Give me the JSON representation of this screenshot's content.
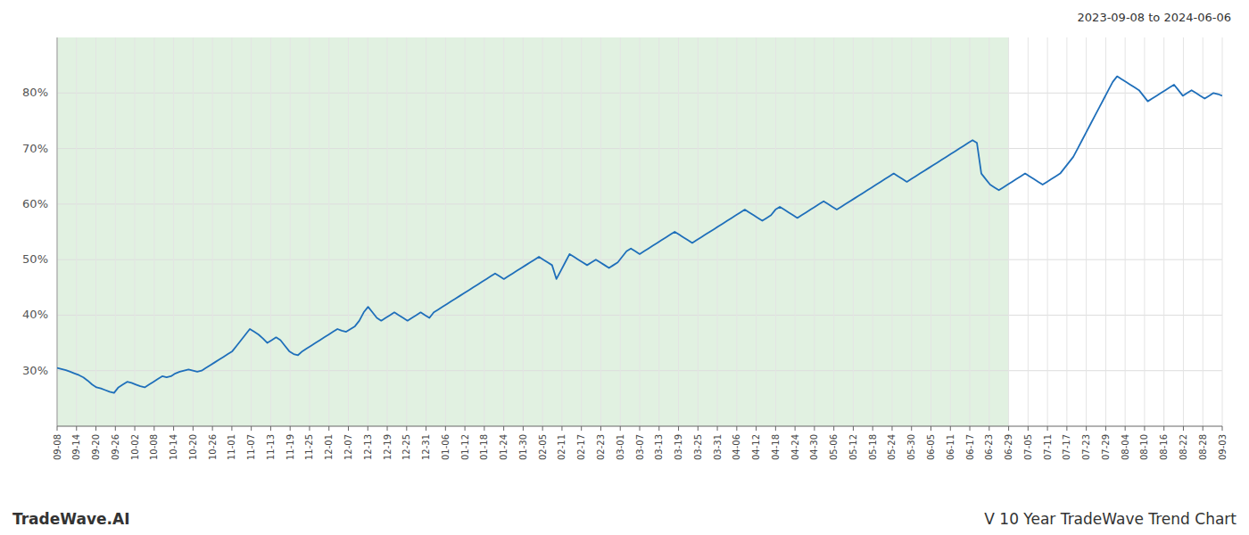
{
  "chart_data": {
    "type": "line",
    "title": "2023-09-08 to 2024-06-06",
    "annotations": [
      "TradeWave.AI",
      "V 10 Year TradeWave Trend Chart"
    ],
    "color": "#1f6fba",
    "grid": true,
    "shaded_region": {
      "start": 0,
      "end": 49,
      "color": "#c8e6c9"
    },
    "xlim": [
      0,
      60
    ],
    "xticks": [
      {
        "value": 0,
        "label": "09-08"
      },
      {
        "value": 1,
        "label": "09-14"
      },
      {
        "value": 2,
        "label": "09-20"
      },
      {
        "value": 3,
        "label": "09-26"
      },
      {
        "value": 4,
        "label": "10-02"
      },
      {
        "value": 5,
        "label": "10-08"
      },
      {
        "value": 6,
        "label": "10-14"
      },
      {
        "value": 7,
        "label": "10-20"
      },
      {
        "value": 8,
        "label": "10-26"
      },
      {
        "value": 9,
        "label": "11-01"
      },
      {
        "value": 10,
        "label": "11-07"
      },
      {
        "value": 11,
        "label": "11-13"
      },
      {
        "value": 12,
        "label": "11-19"
      },
      {
        "value": 13,
        "label": "11-25"
      },
      {
        "value": 14,
        "label": "12-01"
      },
      {
        "value": 15,
        "label": "12-07"
      },
      {
        "value": 16,
        "label": "12-13"
      },
      {
        "value": 17,
        "label": "12-19"
      },
      {
        "value": 18,
        "label": "12-25"
      },
      {
        "value": 19,
        "label": "12-31"
      },
      {
        "value": 20,
        "label": "01-06"
      },
      {
        "value": 21,
        "label": "01-12"
      },
      {
        "value": 22,
        "label": "01-18"
      },
      {
        "value": 23,
        "label": "01-24"
      },
      {
        "value": 24,
        "label": "01-30"
      },
      {
        "value": 25,
        "label": "02-05"
      },
      {
        "value": 26,
        "label": "02-11"
      },
      {
        "value": 27,
        "label": "02-17"
      },
      {
        "value": 28,
        "label": "02-23"
      },
      {
        "value": 29,
        "label": "03-01"
      },
      {
        "value": 30,
        "label": "03-07"
      },
      {
        "value": 31,
        "label": "03-13"
      },
      {
        "value": 32,
        "label": "03-19"
      },
      {
        "value": 33,
        "label": "03-25"
      },
      {
        "value": 34,
        "label": "03-31"
      },
      {
        "value": 35,
        "label": "04-06"
      },
      {
        "value": 36,
        "label": "04-12"
      },
      {
        "value": 37,
        "label": "04-18"
      },
      {
        "value": 38,
        "label": "04-24"
      },
      {
        "value": 39,
        "label": "04-30"
      },
      {
        "value": 40,
        "label": "05-06"
      },
      {
        "value": 41,
        "label": "05-12"
      },
      {
        "value": 42,
        "label": "05-18"
      },
      {
        "value": 43,
        "label": "05-24"
      },
      {
        "value": 44,
        "label": "05-30"
      },
      {
        "value": 45,
        "label": "06-05"
      },
      {
        "value": 46,
        "label": "06-11"
      },
      {
        "value": 47,
        "label": "06-17"
      },
      {
        "value": 48,
        "label": "06-23"
      },
      {
        "value": 49,
        "label": "06-29"
      },
      {
        "value": 50,
        "label": "07-05"
      },
      {
        "value": 51,
        "label": "07-11"
      },
      {
        "value": 52,
        "label": "07-17"
      },
      {
        "value": 53,
        "label": "07-23"
      },
      {
        "value": 54,
        "label": "07-29"
      },
      {
        "value": 55,
        "label": "08-04"
      },
      {
        "value": 56,
        "label": "08-10"
      },
      {
        "value": 57,
        "label": "08-16"
      },
      {
        "value": 58,
        "label": "08-22"
      },
      {
        "value": 59,
        "label": "08-28"
      },
      {
        "value": 60,
        "label": "09-03"
      }
    ],
    "ylim": [
      20,
      90
    ],
    "yticks": [
      {
        "value": 30,
        "label": "30%"
      },
      {
        "value": 40,
        "label": "40%"
      },
      {
        "value": 50,
        "label": "50%"
      },
      {
        "value": 60,
        "label": "60%"
      },
      {
        "value": 70,
        "label": "70%"
      },
      {
        "value": 80,
        "label": "80%"
      }
    ],
    "values": [
      30.5,
      30.3,
      30.1,
      29.8,
      29.5,
      29.2,
      28.8,
      28.2,
      27.5,
      27.0,
      26.8,
      26.5,
      26.2,
      26.0,
      27.0,
      27.5,
      28.0,
      27.8,
      27.5,
      27.2,
      27.0,
      27.5,
      28.0,
      28.5,
      29.0,
      28.8,
      29.0,
      29.5,
      29.8,
      30.0,
      30.2,
      30.0,
      29.8,
      30.0,
      30.5,
      31.0,
      31.5,
      32.0,
      32.5,
      33.0,
      33.5,
      34.5,
      35.5,
      36.5,
      37.5,
      37.0,
      36.5,
      35.8,
      35.0,
      35.5,
      36.0,
      35.5,
      34.5,
      33.5,
      33.0,
      32.8,
      33.5,
      34.0,
      34.5,
      35.0,
      35.5,
      36.0,
      36.5,
      37.0,
      37.5,
      37.2,
      37.0,
      37.5,
      38.0,
      39.0,
      40.5,
      41.5,
      40.5,
      39.5,
      39.0,
      39.5,
      40.0,
      40.5,
      40.0,
      39.5,
      39.0,
      39.5,
      40.0,
      40.5,
      40.0,
      39.5,
      40.5,
      41.0,
      41.5,
      42.0,
      42.5,
      43.0,
      43.5,
      44.0,
      44.5,
      45.0,
      45.5,
      46.0,
      46.5,
      47.0,
      47.5,
      47.0,
      46.5,
      47.0,
      47.5,
      48.0,
      48.5,
      49.0,
      49.5,
      50.0,
      50.5,
      50.0,
      49.5,
      49.0,
      46.5,
      48.0,
      49.5,
      51.0,
      50.5,
      50.0,
      49.5,
      49.0,
      49.5,
      50.0,
      49.5,
      49.0,
      48.5,
      49.0,
      49.5,
      50.5,
      51.5,
      52.0,
      51.5,
      51.0,
      51.5,
      52.0,
      52.5,
      53.0,
      53.5,
      54.0,
      54.5,
      55.0,
      54.5,
      54.0,
      53.5,
      53.0,
      53.5,
      54.0,
      54.5,
      55.0,
      55.5,
      56.0,
      56.5,
      57.0,
      57.5,
      58.0,
      58.5,
      59.0,
      58.5,
      58.0,
      57.5,
      57.0,
      57.5,
      58.0,
      59.0,
      59.5,
      59.0,
      58.5,
      58.0,
      57.5,
      58.0,
      58.5,
      59.0,
      59.5,
      60.0,
      60.5,
      60.0,
      59.5,
      59.0,
      59.5,
      60.0,
      60.5,
      61.0,
      61.5,
      62.0,
      62.5,
      63.0,
      63.5,
      64.0,
      64.5,
      65.0,
      65.5,
      65.0,
      64.5,
      64.0,
      64.5,
      65.0,
      65.5,
      66.0,
      66.5,
      67.0,
      67.5,
      68.0,
      68.5,
      69.0,
      69.5,
      70.0,
      70.5,
      71.0,
      71.5,
      71.0,
      65.5,
      64.5,
      63.5,
      63.0,
      62.5,
      63.0,
      63.5,
      64.0,
      64.5,
      65.0,
      65.5,
      65.0,
      64.5,
      64.0,
      63.5,
      64.0,
      64.5,
      65.0,
      65.5,
      66.5,
      67.5,
      68.5,
      70.0,
      71.5,
      73.0,
      74.5,
      76.0,
      77.5,
      79.0,
      80.5,
      82.0,
      83.0,
      82.5,
      82.0,
      81.5,
      81.0,
      80.5,
      79.5,
      78.5,
      79.0,
      79.5,
      80.0,
      80.5,
      81.0,
      81.5,
      80.5,
      79.5,
      80.0,
      80.5,
      80.0,
      79.5,
      79.0,
      79.5,
      80.0,
      79.8,
      79.5
    ]
  }
}
